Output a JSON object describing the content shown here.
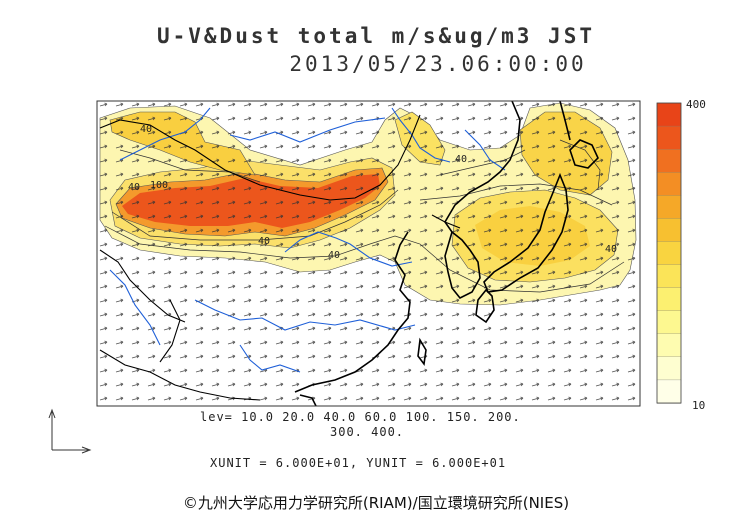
{
  "title": {
    "line1": "U-V&Dust total m/s&ug/m3 JST",
    "line2": "2013/05/23.06:00:00"
  },
  "contour_labels": [
    "40",
    "100",
    "40",
    "40",
    "40",
    "40",
    "40"
  ],
  "levels": {
    "line1": "lev= 10.0 20.0 40.0 60.0 100. 150. 200.",
    "line2": "300. 400.",
    "values": [
      10,
      20,
      40,
      60,
      100,
      150,
      200,
      300,
      400
    ]
  },
  "units_text": "XUNIT = 6.000E+01, YUNIT = 6.000E+01",
  "legend": {
    "max_label": "400",
    "min_label": "10",
    "colors": [
      "#ffffe8",
      "#fefed0",
      "#fefcb0",
      "#fdf890",
      "#fcf070",
      "#fbe458",
      "#f9d440",
      "#f7c030",
      "#f5a828",
      "#f38e24",
      "#f07020",
      "#ec561c",
      "#e84418"
    ]
  },
  "colors": {
    "dust_light": "#fdf6b0",
    "dust_mid": "#f7d850",
    "dust_high": "#ee5a1c",
    "coastline": "#000000",
    "rivers": "#1e5fd8"
  },
  "copyright": "©九州大学応用力学研究所(RIAM)/国立環境研究所(NIES)"
}
